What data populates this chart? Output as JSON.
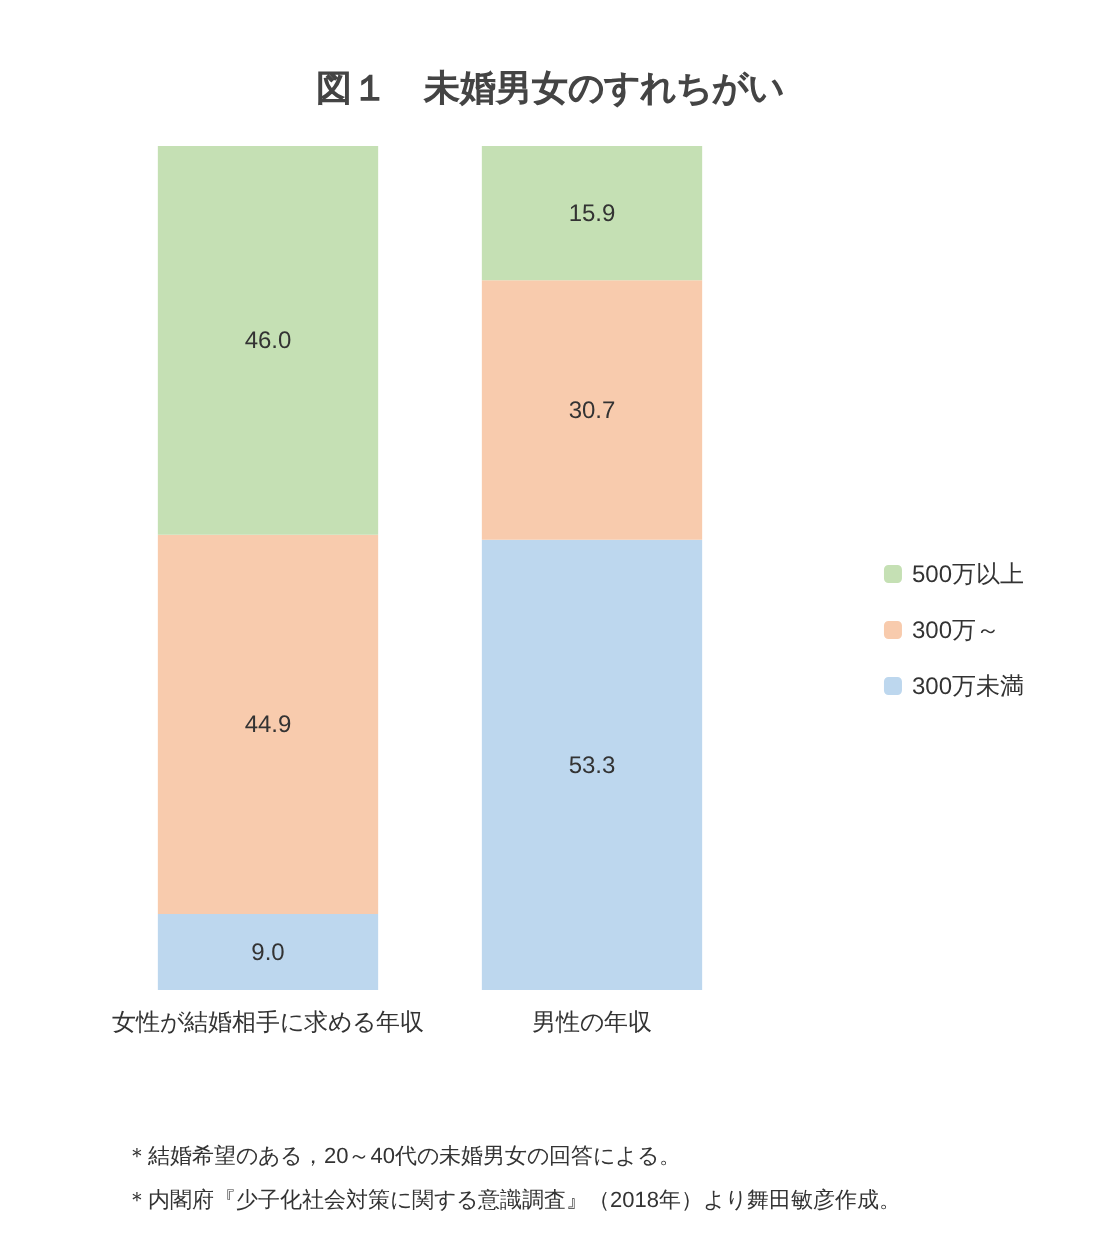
{
  "chart_data": {
    "type": "bar",
    "title": "図１　未婚男女のすれちがい",
    "categories": [
      "女性が結婚相手に求める年収",
      "男性の年収"
    ],
    "stacked": true,
    "legend": "right",
    "series": [
      {
        "name": "300万未満",
        "color": "#bdd7ee",
        "values": [
          9,
          53.3
        ],
        "value_labels": [
          "9.0",
          "53.3"
        ]
      },
      {
        "name": "300万～",
        "color": "#f8cbad",
        "values": [
          44.9,
          30.7
        ],
        "value_labels": [
          "44.9",
          "30.7"
        ]
      },
      {
        "name": "500万以上",
        "color": "#c5e0b4",
        "values": [
          46,
          15.9
        ],
        "value_labels": [
          "46.0",
          "15.9"
        ]
      }
    ],
    "annotations": [
      "＊結婚希望のある，20～40代の未婚男女の回答による。",
      "＊内閣府『少子化社会対策に関する意識調査』（2018年）より舞田敏彦作成。"
    ]
  }
}
